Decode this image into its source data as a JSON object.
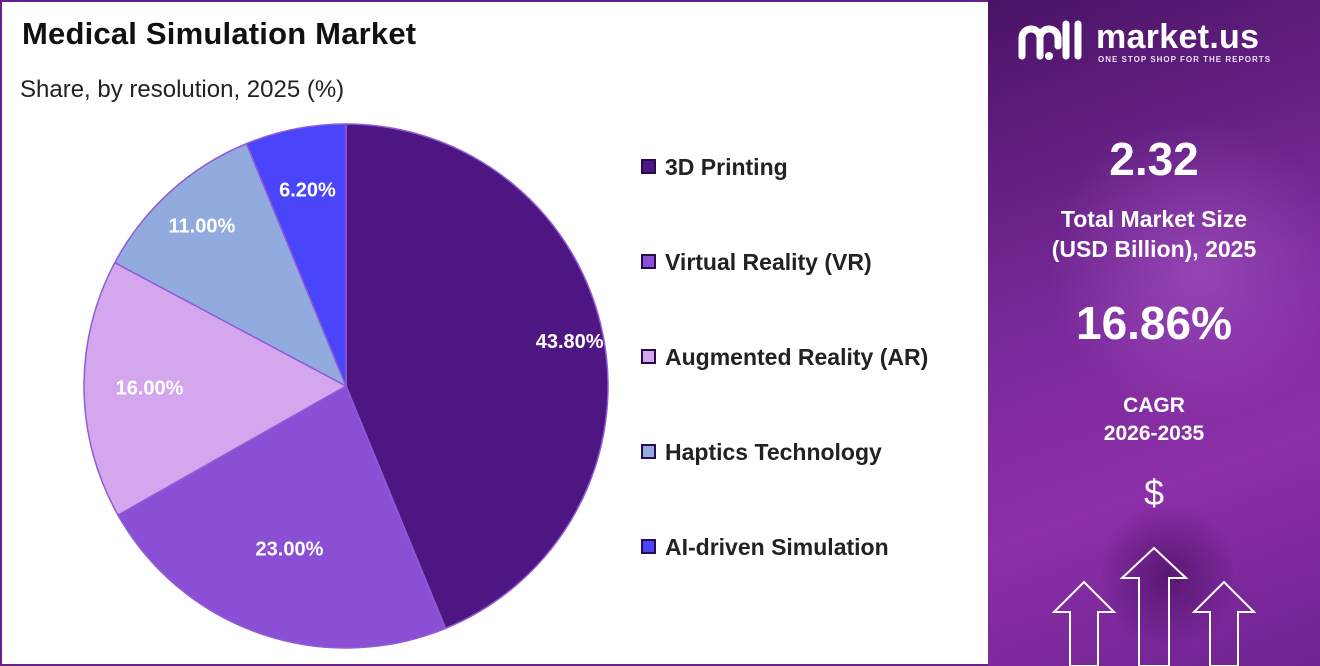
{
  "header": {
    "title": "Medical Simulation Market",
    "subtitle": "Share, by resolution, 2025 (%)"
  },
  "chart_data": {
    "type": "pie",
    "title": "Medical Simulation Market",
    "subtitle": "Share, by resolution, 2025 (%)",
    "legend_position": "right",
    "slices": [
      {
        "name": "3D Printing",
        "value": 43.8,
        "label": "43.80%",
        "color": "#4d1682"
      },
      {
        "name": "Virtual Reality (VR)",
        "value": 23.0,
        "label": "23.00%",
        "color": "#8a4fd4"
      },
      {
        "name": "Augmented Reality (AR)",
        "value": 16.0,
        "label": "16.00%",
        "color": "#d3a6ee"
      },
      {
        "name": "Haptics Technology",
        "value": 11.0,
        "label": "11.00%",
        "color": "#91abdf"
      },
      {
        "name": "AI-driven Simulation",
        "value": 6.2,
        "label": "6.20%",
        "color": "#4a45fa"
      }
    ]
  },
  "sidebar": {
    "brand_name": "market.us",
    "brand_tagline": "ONE STOP SHOP FOR THE REPORTS",
    "market_size_value": "2.32",
    "market_size_label_1": "Total Market Size",
    "market_size_label_2": "(USD Billion), 2025",
    "cagr_value": "16.86%",
    "cagr_label_1": "CAGR",
    "cagr_label_2": "2026-2035",
    "dollar_symbol": "$",
    "icons": [
      "market-us-logo-icon",
      "dollar-icon",
      "growth-arrows-icon"
    ]
  }
}
